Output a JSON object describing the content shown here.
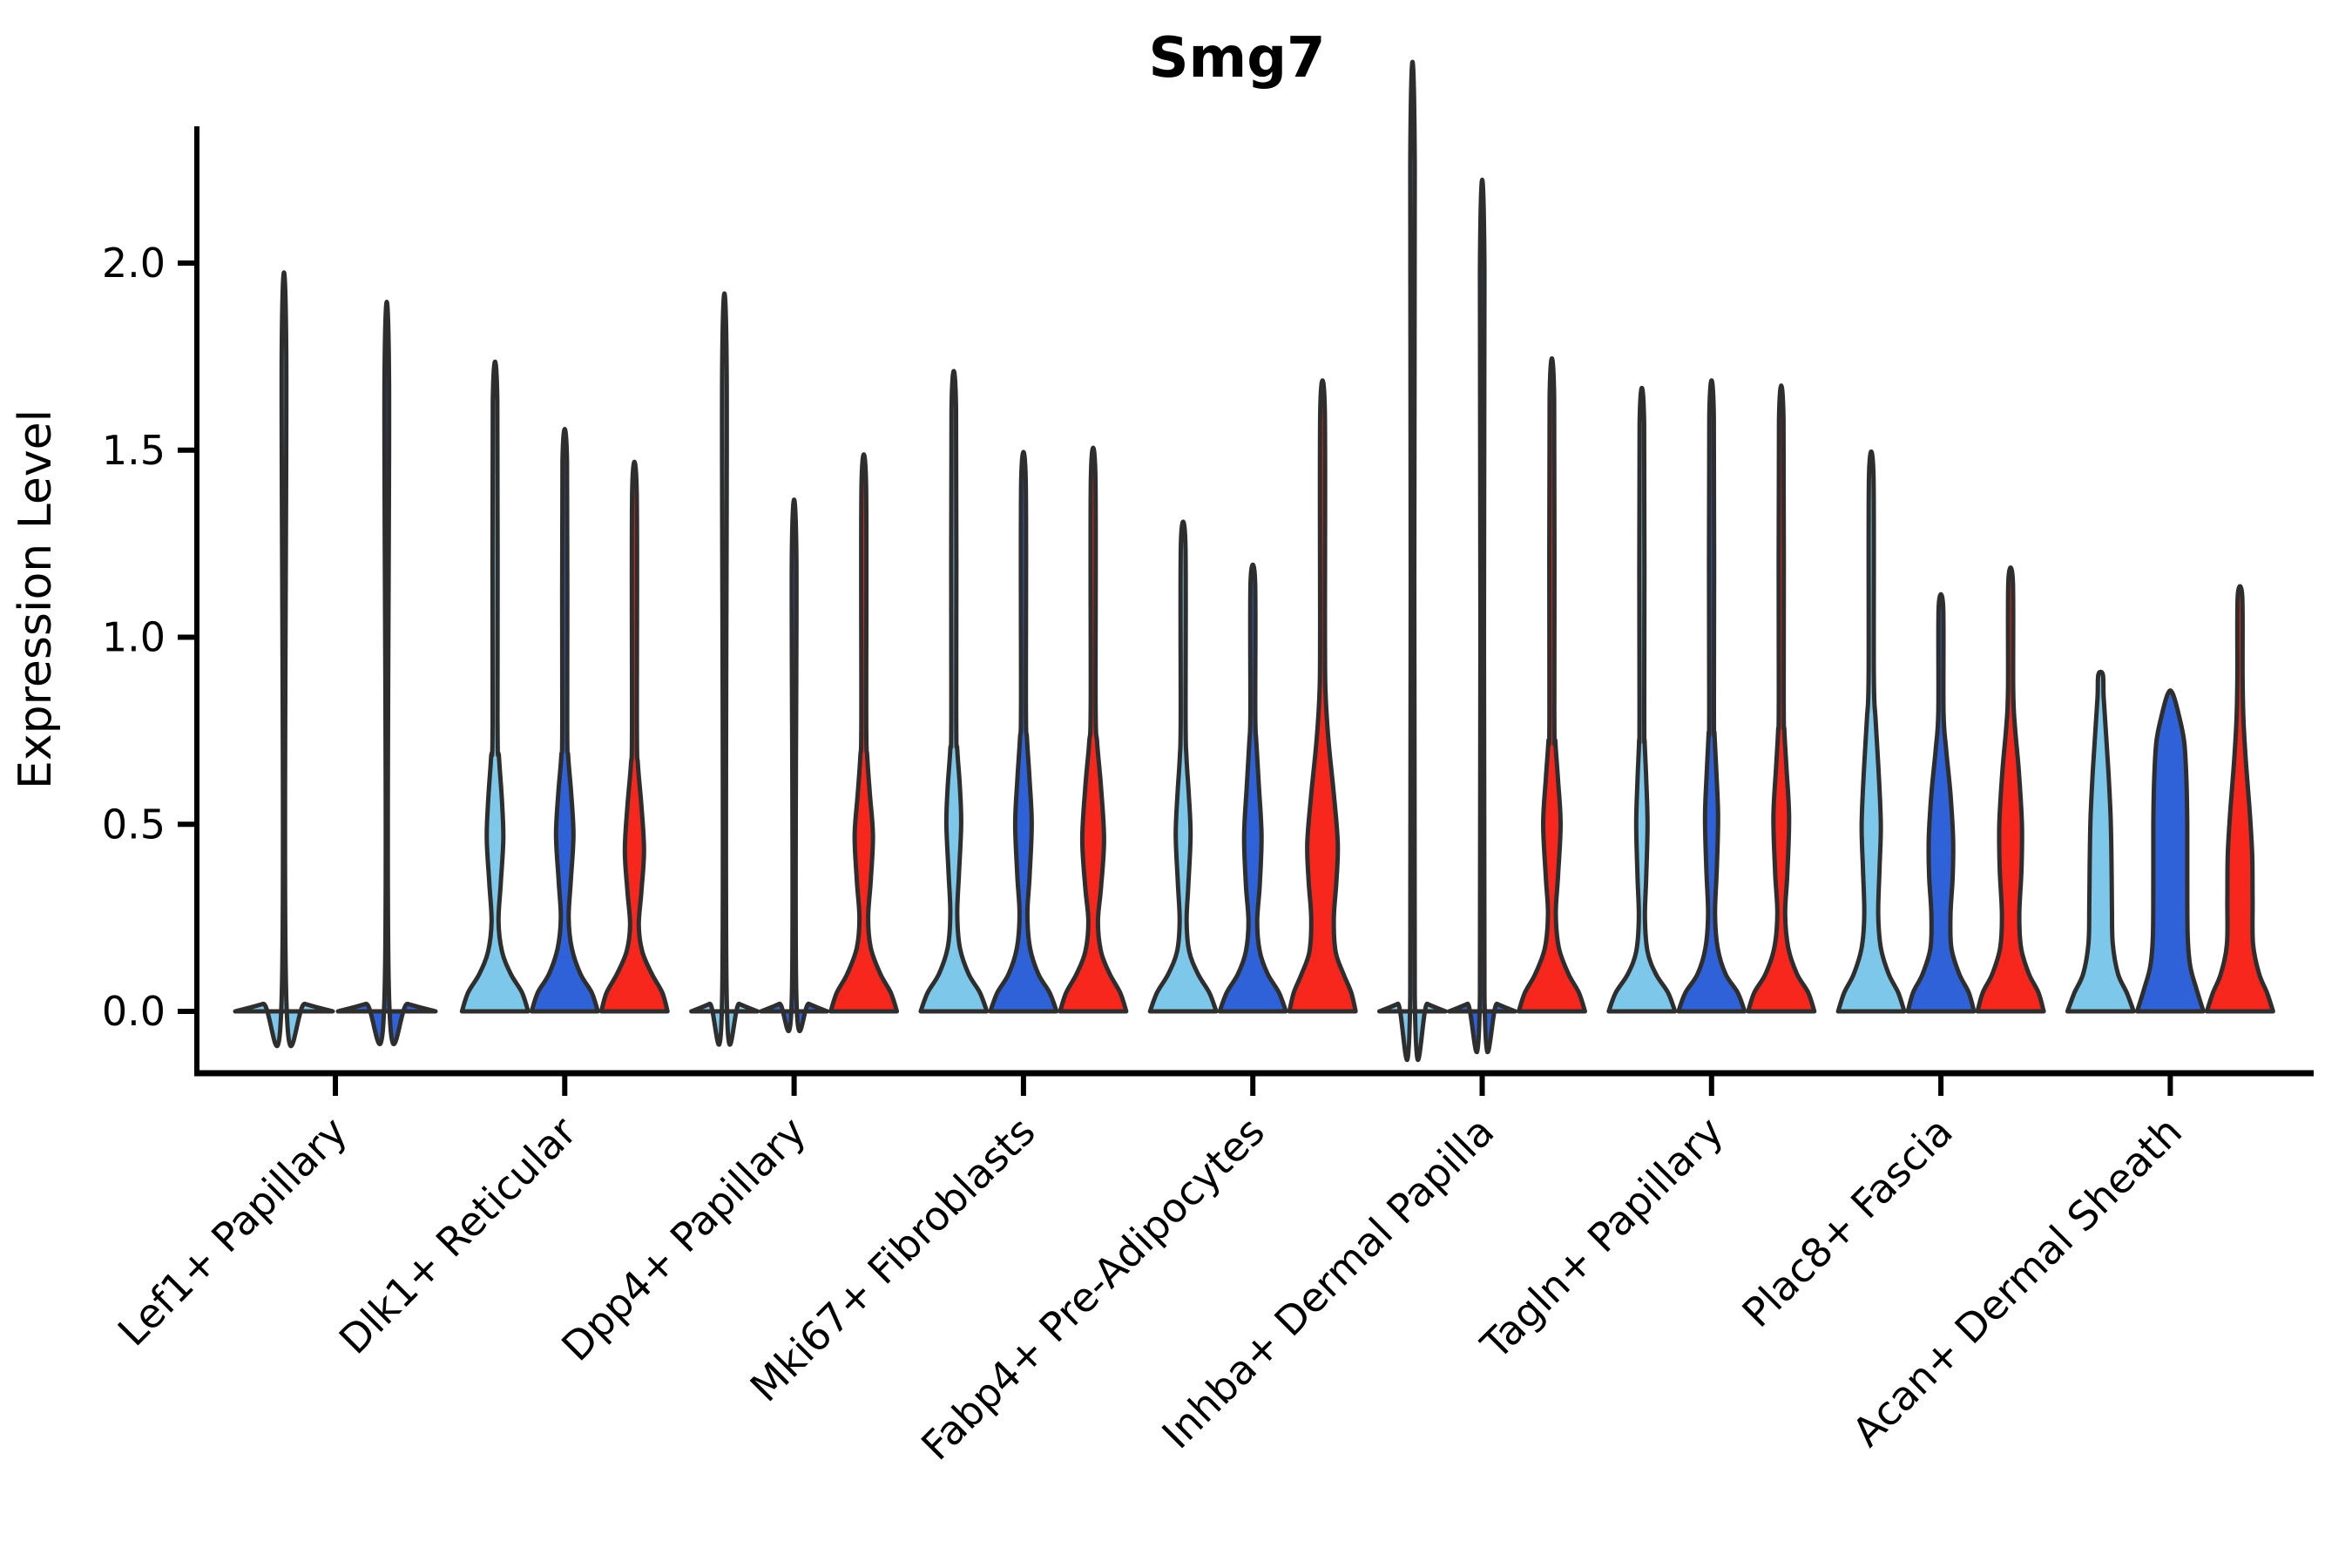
{
  "title": "Smg7",
  "y_axis": {
    "label": "Expression Level",
    "tick_labels": [
      "0.0",
      "0.5",
      "1.0",
      "1.5",
      "2.0"
    ],
    "tick_values": [
      0.0,
      0.5,
      1.0,
      1.5,
      2.0
    ]
  },
  "categories": [
    "Lef1+ Papillary",
    "Dlk1+ Reticular",
    "Dpp4+ Papillary",
    "Mki67+ Fibroblasts",
    "Fabp4+ Pre-Adipocytes",
    "Inhba+ Dermal Papilla",
    "Tagln+ Papillary",
    "Plac8+ Fascia",
    "Acan+ Dermal Sheath"
  ],
  "palette": {
    "light-blue": "#7DC8EA",
    "dark-blue": "#2F62D8",
    "red": "#F7271D",
    "outline": "#2E2E2E",
    "text": "#000000"
  },
  "chart_data": {
    "type": "violin",
    "title": "Smg7",
    "ylabel": "Expression Level",
    "ylim": [
      -0.17,
      2.37
    ],
    "grid": false,
    "legend": "none",
    "categories": [
      "Lef1+ Papillary",
      "Dlk1+ Reticular",
      "Dpp4+ Papillary",
      "Mki67+ Fibroblasts",
      "Fabp4+ Pre-Adipocytes",
      "Inhba+ Dermal Papilla",
      "Tagln+ Papillary",
      "Plac8+ Fascia",
      "Acan+ Dermal Sheath"
    ],
    "series": [
      {
        "name": "light-blue",
        "max_expression": [
          1.76,
          1.63,
          1.71,
          1.61,
          1.25,
          2.26,
          1.57,
          1.43,
          0.9
        ]
      },
      {
        "name": "dark-blue",
        "max_expression": [
          1.69,
          1.47,
          1.22,
          1.42,
          1.15,
          1.98,
          1.59,
          1.08,
          0.85
        ]
      },
      {
        "name": "red",
        "max_expression": [
          null,
          1.39,
          1.41,
          1.43,
          1.61,
          1.64,
          1.58,
          1.15,
          1.11
        ]
      }
    ],
    "violins": [
      {
        "group": 0,
        "color": "light-blue",
        "max": 1.76,
        "flat": true,
        "profile": [
          [
            0,
            56
          ],
          [
            0.02,
            24
          ],
          [
            0.04,
            2.6
          ],
          [
            1.76,
            2.6
          ]
        ]
      },
      {
        "group": 0,
        "color": "dark-blue",
        "max": 1.69,
        "flat": true,
        "profile": [
          [
            0,
            56
          ],
          [
            0.02,
            24
          ],
          [
            0.04,
            2.6
          ],
          [
            1.69,
            2.6
          ]
        ]
      },
      {
        "group": 1,
        "color": "light-blue",
        "max": 1.63,
        "flat": false,
        "profile": [
          [
            0,
            38
          ],
          [
            0.05,
            31
          ],
          [
            0.1,
            18
          ],
          [
            0.16,
            8
          ],
          [
            0.24,
            4
          ],
          [
            0.34,
            6.5
          ],
          [
            0.46,
            9.5
          ],
          [
            0.56,
            8
          ],
          [
            0.68,
            4.5
          ],
          [
            0.78,
            2.8
          ],
          [
            1.63,
            2.6
          ]
        ]
      },
      {
        "group": 1,
        "color": "dark-blue",
        "max": 1.47,
        "flat": false,
        "profile": [
          [
            0,
            38
          ],
          [
            0.05,
            31
          ],
          [
            0.1,
            18
          ],
          [
            0.17,
            8
          ],
          [
            0.25,
            4.5
          ],
          [
            0.35,
            7
          ],
          [
            0.47,
            10
          ],
          [
            0.58,
            7.5
          ],
          [
            0.68,
            4
          ],
          [
            0.78,
            2.8
          ],
          [
            1.47,
            2.6
          ]
        ]
      },
      {
        "group": 1,
        "color": "red",
        "max": 1.39,
        "flat": false,
        "profile": [
          [
            0,
            38
          ],
          [
            0.05,
            32
          ],
          [
            0.1,
            20
          ],
          [
            0.16,
            9
          ],
          [
            0.23,
            5
          ],
          [
            0.32,
            8
          ],
          [
            0.43,
            11
          ],
          [
            0.55,
            8
          ],
          [
            0.66,
            4
          ],
          [
            0.76,
            2.8
          ],
          [
            1.39,
            2.6
          ]
        ]
      },
      {
        "group": 2,
        "color": "light-blue",
        "max": 1.71,
        "flat": true,
        "profile": [
          [
            0,
            38
          ],
          [
            0.02,
            17
          ],
          [
            0.04,
            2.6
          ],
          [
            1.71,
            2.6
          ]
        ]
      },
      {
        "group": 2,
        "color": "dark-blue",
        "max": 1.22,
        "flat": true,
        "profile": [
          [
            0,
            38
          ],
          [
            0.02,
            17
          ],
          [
            0.04,
            2.6
          ],
          [
            1.22,
            2.6
          ]
        ]
      },
      {
        "group": 2,
        "color": "red",
        "max": 1.41,
        "flat": false,
        "profile": [
          [
            0,
            38
          ],
          [
            0.05,
            31
          ],
          [
            0.1,
            19
          ],
          [
            0.17,
            8
          ],
          [
            0.25,
            5
          ],
          [
            0.35,
            8
          ],
          [
            0.47,
            10.5
          ],
          [
            0.58,
            7
          ],
          [
            0.68,
            4
          ],
          [
            0.78,
            2.8
          ],
          [
            1.41,
            2.6
          ]
        ]
      },
      {
        "group": 3,
        "color": "light-blue",
        "max": 1.61,
        "flat": false,
        "profile": [
          [
            0,
            38
          ],
          [
            0.05,
            30
          ],
          [
            0.1,
            17
          ],
          [
            0.17,
            7
          ],
          [
            0.26,
            4
          ],
          [
            0.37,
            6
          ],
          [
            0.5,
            8.5
          ],
          [
            0.6,
            7
          ],
          [
            0.7,
            4
          ],
          [
            0.8,
            2.8
          ],
          [
            1.61,
            2.6
          ]
        ]
      },
      {
        "group": 3,
        "color": "dark-blue",
        "max": 1.42,
        "flat": false,
        "profile": [
          [
            0,
            38
          ],
          [
            0.05,
            30
          ],
          [
            0.1,
            17
          ],
          [
            0.17,
            7.5
          ],
          [
            0.26,
            4.5
          ],
          [
            0.36,
            7
          ],
          [
            0.5,
            9.5
          ],
          [
            0.62,
            7
          ],
          [
            0.73,
            4
          ],
          [
            0.82,
            2.8
          ],
          [
            1.42,
            2.6
          ]
        ]
      },
      {
        "group": 3,
        "color": "red",
        "max": 1.43,
        "flat": false,
        "profile": [
          [
            0,
            38
          ],
          [
            0.05,
            31
          ],
          [
            0.1,
            19
          ],
          [
            0.16,
            9
          ],
          [
            0.24,
            5.5
          ],
          [
            0.33,
            9
          ],
          [
            0.46,
            12.5
          ],
          [
            0.6,
            9
          ],
          [
            0.72,
            4.5
          ],
          [
            0.82,
            2.8
          ],
          [
            1.43,
            2.6
          ]
        ]
      },
      {
        "group": 4,
        "color": "light-blue",
        "max": 1.25,
        "flat": false,
        "profile": [
          [
            0,
            38
          ],
          [
            0.05,
            30
          ],
          [
            0.1,
            17
          ],
          [
            0.16,
            7
          ],
          [
            0.24,
            4
          ],
          [
            0.34,
            6
          ],
          [
            0.47,
            8.5
          ],
          [
            0.58,
            6.5
          ],
          [
            0.68,
            3.8
          ],
          [
            0.78,
            2.8
          ],
          [
            1.25,
            2.6
          ]
        ]
      },
      {
        "group": 4,
        "color": "dark-blue",
        "max": 1.15,
        "flat": false,
        "profile": [
          [
            0,
            38
          ],
          [
            0.05,
            30
          ],
          [
            0.1,
            17
          ],
          [
            0.16,
            8
          ],
          [
            0.24,
            5
          ],
          [
            0.34,
            8
          ],
          [
            0.47,
            10
          ],
          [
            0.6,
            7
          ],
          [
            0.72,
            4
          ],
          [
            0.8,
            2.8
          ],
          [
            1.15,
            2.6
          ]
        ]
      },
      {
        "group": 4,
        "color": "red",
        "max": 1.61,
        "flat": false,
        "profile": [
          [
            0,
            38
          ],
          [
            0.05,
            33
          ],
          [
            0.1,
            24
          ],
          [
            0.16,
            15
          ],
          [
            0.25,
            13
          ],
          [
            0.35,
            16
          ],
          [
            0.45,
            17.5
          ],
          [
            0.58,
            13
          ],
          [
            0.72,
            7
          ],
          [
            0.85,
            3.5
          ],
          [
            1.0,
            2.8
          ],
          [
            1.61,
            2.6
          ]
        ]
      },
      {
        "group": 5,
        "color": "light-blue",
        "max": 2.26,
        "flat": true,
        "profile": [
          [
            0,
            38
          ],
          [
            0.02,
            17
          ],
          [
            0.04,
            2.6
          ],
          [
            2.26,
            2.6
          ]
        ]
      },
      {
        "group": 5,
        "color": "dark-blue",
        "max": 1.98,
        "flat": true,
        "profile": [
          [
            0,
            38
          ],
          [
            0.02,
            17
          ],
          [
            0.04,
            2.6
          ],
          [
            1.98,
            2.6
          ]
        ]
      },
      {
        "group": 5,
        "color": "red",
        "max": 1.64,
        "flat": false,
        "profile": [
          [
            0,
            38
          ],
          [
            0.05,
            31
          ],
          [
            0.1,
            19
          ],
          [
            0.17,
            8
          ],
          [
            0.26,
            4.5
          ],
          [
            0.36,
            7
          ],
          [
            0.5,
            10
          ],
          [
            0.62,
            7
          ],
          [
            0.72,
            4
          ],
          [
            0.8,
            2.8
          ],
          [
            1.64,
            2.6
          ]
        ]
      },
      {
        "group": 6,
        "color": "light-blue",
        "max": 1.57,
        "flat": false,
        "profile": [
          [
            0,
            38
          ],
          [
            0.05,
            30
          ],
          [
            0.1,
            16
          ],
          [
            0.16,
            6.5
          ],
          [
            0.25,
            3.5
          ],
          [
            0.36,
            5
          ],
          [
            0.5,
            6.5
          ],
          [
            0.62,
            5
          ],
          [
            0.72,
            3.2
          ],
          [
            0.8,
            2.7
          ],
          [
            1.57,
            2.6
          ]
        ]
      },
      {
        "group": 6,
        "color": "dark-blue",
        "max": 1.59,
        "flat": false,
        "profile": [
          [
            0,
            38
          ],
          [
            0.05,
            30
          ],
          [
            0.1,
            16
          ],
          [
            0.17,
            7
          ],
          [
            0.26,
            4
          ],
          [
            0.38,
            6
          ],
          [
            0.52,
            7.5
          ],
          [
            0.64,
            5.5
          ],
          [
            0.74,
            3.4
          ],
          [
            0.82,
            2.7
          ],
          [
            1.59,
            2.6
          ]
        ]
      },
      {
        "group": 6,
        "color": "red",
        "max": 1.58,
        "flat": false,
        "profile": [
          [
            0,
            38
          ],
          [
            0.05,
            31
          ],
          [
            0.1,
            18
          ],
          [
            0.17,
            8
          ],
          [
            0.26,
            4.5
          ],
          [
            0.37,
            7
          ],
          [
            0.52,
            9
          ],
          [
            0.65,
            6
          ],
          [
            0.75,
            3.6
          ],
          [
            0.84,
            2.8
          ],
          [
            1.58,
            2.6
          ]
        ]
      },
      {
        "group": 7,
        "color": "light-blue",
        "max": 1.43,
        "flat": false,
        "profile": [
          [
            0,
            38
          ],
          [
            0.05,
            31
          ],
          [
            0.1,
            20
          ],
          [
            0.17,
            11
          ],
          [
            0.26,
            8
          ],
          [
            0.38,
            9.5
          ],
          [
            0.5,
            11
          ],
          [
            0.64,
            8.5
          ],
          [
            0.78,
            5
          ],
          [
            0.9,
            3
          ],
          [
            1.43,
            2.6
          ]
        ]
      },
      {
        "group": 7,
        "color": "dark-blue",
        "max": 1.08,
        "flat": false,
        "profile": [
          [
            0,
            38
          ],
          [
            0.05,
            32
          ],
          [
            0.1,
            21
          ],
          [
            0.17,
            12
          ],
          [
            0.26,
            11
          ],
          [
            0.36,
            13.5
          ],
          [
            0.46,
            14
          ],
          [
            0.58,
            11
          ],
          [
            0.7,
            6
          ],
          [
            0.8,
            3
          ],
          [
            1.08,
            2.6
          ]
        ]
      },
      {
        "group": 7,
        "color": "red",
        "max": 1.15,
        "flat": false,
        "profile": [
          [
            0,
            38
          ],
          [
            0.05,
            32
          ],
          [
            0.1,
            21
          ],
          [
            0.17,
            12
          ],
          [
            0.26,
            10
          ],
          [
            0.38,
            12.5
          ],
          [
            0.5,
            13
          ],
          [
            0.64,
            9.5
          ],
          [
            0.76,
            5
          ],
          [
            0.86,
            3
          ],
          [
            1.15,
            2.6
          ]
        ]
      },
      {
        "group": 8,
        "color": "light-blue",
        "max": 0.9,
        "flat": false,
        "profile": [
          [
            0,
            38
          ],
          [
            0.05,
            30
          ],
          [
            0.1,
            20
          ],
          [
            0.18,
            14
          ],
          [
            0.28,
            13
          ],
          [
            0.4,
            12.5
          ],
          [
            0.52,
            11.5
          ],
          [
            0.64,
            9
          ],
          [
            0.75,
            6
          ],
          [
            0.84,
            3.5
          ],
          [
            0.9,
            2.6
          ]
        ]
      },
      {
        "group": 8,
        "color": "dark-blue",
        "max": 0.85,
        "flat": false,
        "profile": [
          [
            0,
            38
          ],
          [
            0.06,
            30
          ],
          [
            0.12,
            23
          ],
          [
            0.2,
            20
          ],
          [
            0.35,
            19.5
          ],
          [
            0.5,
            19.5
          ],
          [
            0.62,
            18.5
          ],
          [
            0.72,
            16
          ],
          [
            0.79,
            10
          ],
          [
            0.85,
            2.6
          ]
        ]
      },
      {
        "group": 8,
        "color": "red",
        "max": 1.11,
        "flat": false,
        "profile": [
          [
            0,
            38
          ],
          [
            0.05,
            31
          ],
          [
            0.1,
            22
          ],
          [
            0.18,
            15
          ],
          [
            0.3,
            14.5
          ],
          [
            0.42,
            14
          ],
          [
            0.54,
            11
          ],
          [
            0.66,
            7
          ],
          [
            0.78,
            4
          ],
          [
            0.9,
            3
          ],
          [
            1.11,
            2.6
          ]
        ]
      }
    ]
  }
}
